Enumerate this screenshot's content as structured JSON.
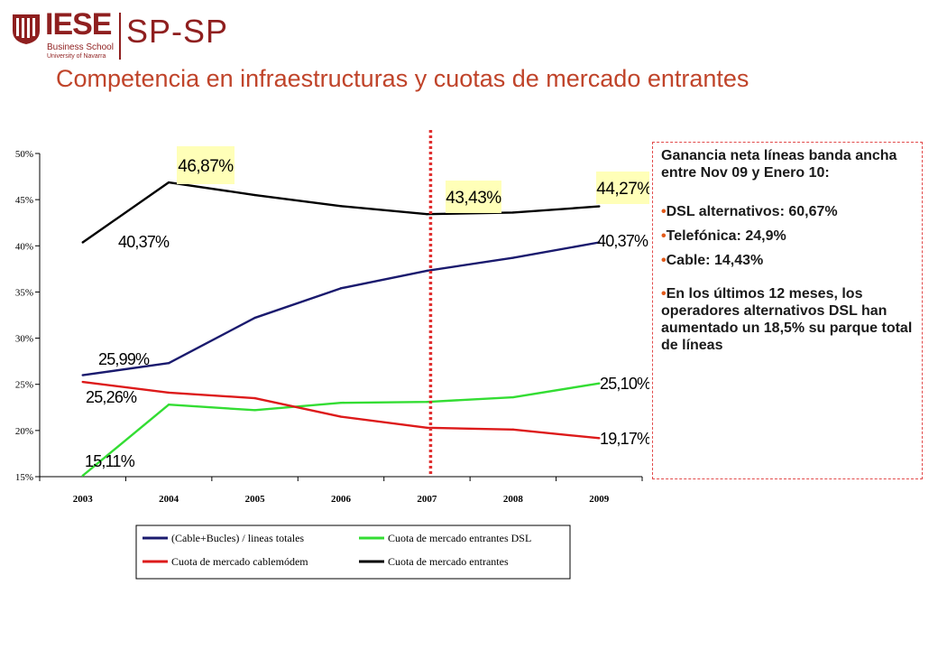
{
  "logo": {
    "brand": "IESE",
    "sub1": "Business School",
    "sub2": "University of Navarra",
    "program": "SP-SP",
    "color": "#8f1f1f"
  },
  "title": "Competencia en infraestructuras y cuotas de mercado entrantes",
  "side_panel": {
    "intro": "Ganancia neta líneas banda ancha entre Nov 09 y Enero 10:",
    "bullets": [
      "DSL alternativos: 60,67%",
      "Telefónica: 24,9%",
      "Cable: 14,43%",
      "En los últimos 12 meses, los operadores alternativos DSL han aumentado un 18,5% su parque total de líneas"
    ]
  },
  "chart_data": {
    "type": "line",
    "categories": [
      "2003",
      "2004",
      "2005",
      "2006",
      "2007",
      "2008",
      "2009"
    ],
    "ylim": [
      15,
      50
    ],
    "yticks": [
      "15%",
      "20%",
      "25%",
      "30%",
      "35%",
      "40%",
      "45%",
      "50%"
    ],
    "grid": false,
    "legend_position": "bottom",
    "vertical_marker": {
      "category": "2007",
      "style": "dotted",
      "color": "#e03030"
    },
    "series": [
      {
        "name": "(Cable+Bucles) / lineas totales",
        "color": "#1a1a6e",
        "values": [
          25.99,
          27.3,
          32.2,
          35.4,
          37.3,
          38.7,
          40.37
        ]
      },
      {
        "name": "Cuota de mercado entrantes DSL",
        "color": "#33dd33",
        "values": [
          15.11,
          22.8,
          22.2,
          23.0,
          23.1,
          23.6,
          25.1
        ]
      },
      {
        "name": "Cuota de mercado cablemódem",
        "color": "#dd1a1a",
        "values": [
          25.26,
          24.1,
          23.5,
          21.5,
          20.3,
          20.1,
          19.17
        ]
      },
      {
        "name": "Cuota de mercado entrantes",
        "color": "#000000",
        "values": [
          40.37,
          46.87,
          45.5,
          44.3,
          43.43,
          43.6,
          44.27
        ]
      }
    ],
    "annotations": [
      {
        "text": "46,87%",
        "highlight": true
      },
      {
        "text": "43,43%",
        "highlight": true
      },
      {
        "text": "44,27%",
        "highlight": true
      },
      {
        "text": "40,37%",
        "highlight": false
      },
      {
        "text": "40,37%",
        "highlight": false
      },
      {
        "text": "25,99%",
        "highlight": false
      },
      {
        "text": "25,26%",
        "highlight": false
      },
      {
        "text": "25,10%",
        "highlight": false
      },
      {
        "text": "19,17%",
        "highlight": false
      },
      {
        "text": "15,11%",
        "highlight": false
      }
    ],
    "highlight_color": "#ffffb8"
  }
}
